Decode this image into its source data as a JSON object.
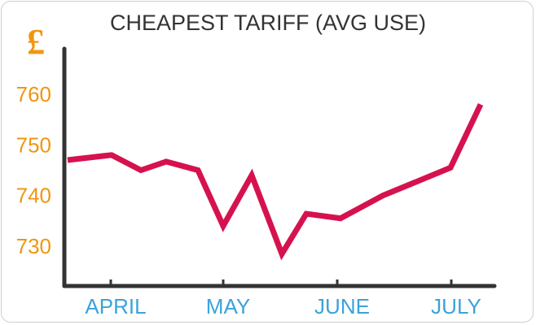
{
  "chart_data": {
    "type": "line",
    "title": "CHEAPEST TARIFF (AVG USE)",
    "currency_symbol": "£",
    "x_tick_labels": [
      "APRIL",
      "MAY",
      "JUNE",
      "JULY"
    ],
    "y_ticks": [
      730,
      740,
      750,
      760
    ],
    "ylim": [
      722,
      770
    ],
    "series": [
      {
        "color": "#d6124e",
        "values": [
          747,
          748,
          745,
          746.7,
          745,
          734,
          744,
          728.5,
          736.4,
          735.5,
          740,
          745.5,
          758
        ]
      }
    ],
    "grid": false,
    "legend": "none"
  },
  "colors": {
    "line": "#d6124e",
    "y_tick": "#f0960f",
    "x_tick": "#3aa3db",
    "axis": "#333333",
    "currency": "#f0960f"
  }
}
